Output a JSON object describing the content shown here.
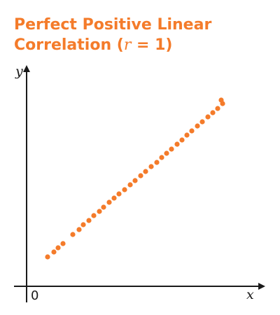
{
  "colors": {
    "accent": "#f47b2a",
    "axis": "#1a1a1a"
  },
  "chart_data": {
    "type": "scatter",
    "title_line1": "Perfect Positive Linear",
    "title_line2_prefix": "Correlation (",
    "title_variable": "r",
    "title_line2_suffix": " = 1)",
    "xlabel": "x",
    "ylabel": "y",
    "origin_label": "0",
    "grid": false,
    "legend": "none",
    "xlim": [
      0,
      340
    ],
    "ylim": [
      0,
      300
    ],
    "points": [
      {
        "x": 30,
        "y": 42
      },
      {
        "x": 39,
        "y": 49
      },
      {
        "x": 45,
        "y": 55
      },
      {
        "x": 52,
        "y": 61
      },
      {
        "x": 66,
        "y": 74
      },
      {
        "x": 75,
        "y": 81
      },
      {
        "x": 81,
        "y": 88
      },
      {
        "x": 89,
        "y": 94
      },
      {
        "x": 96,
        "y": 101
      },
      {
        "x": 104,
        "y": 107
      },
      {
        "x": 110,
        "y": 113
      },
      {
        "x": 118,
        "y": 120
      },
      {
        "x": 125,
        "y": 126
      },
      {
        "x": 132,
        "y": 132
      },
      {
        "x": 140,
        "y": 138
      },
      {
        "x": 148,
        "y": 145
      },
      {
        "x": 155,
        "y": 151
      },
      {
        "x": 163,
        "y": 158
      },
      {
        "x": 170,
        "y": 164
      },
      {
        "x": 178,
        "y": 171
      },
      {
        "x": 186,
        "y": 177
      },
      {
        "x": 193,
        "y": 184
      },
      {
        "x": 200,
        "y": 190
      },
      {
        "x": 207,
        "y": 196
      },
      {
        "x": 215,
        "y": 203
      },
      {
        "x": 222,
        "y": 209
      },
      {
        "x": 229,
        "y": 216
      },
      {
        "x": 236,
        "y": 222
      },
      {
        "x": 244,
        "y": 229
      },
      {
        "x": 251,
        "y": 235
      },
      {
        "x": 259,
        "y": 242
      },
      {
        "x": 266,
        "y": 248
      },
      {
        "x": 273,
        "y": 254
      },
      {
        "x": 280,
        "y": 261
      },
      {
        "x": 278,
        "y": 266
      }
    ]
  }
}
